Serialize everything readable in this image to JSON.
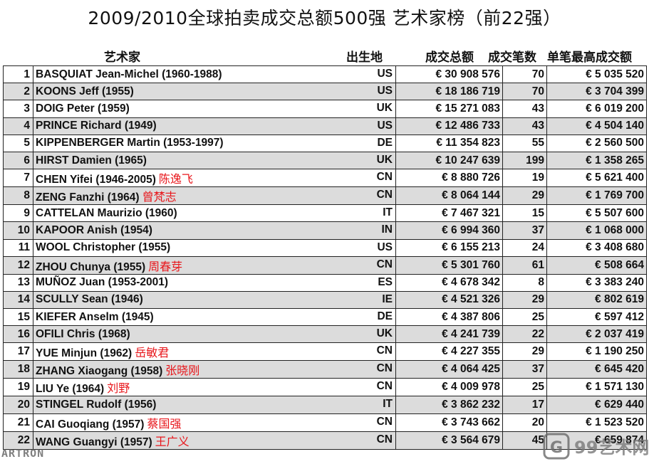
{
  "title": "2009/2010全球拍卖成交总额500强  艺术家榜（前22强）",
  "headers": {
    "artist": "艺术家",
    "birthplace": "出生地",
    "total": "成交总额",
    "count": "成交笔数",
    "max": "单笔最高成交额"
  },
  "rows": [
    {
      "rank": "1",
      "name": "BASQUIAT Jean-Michel (1960-1988)",
      "cn": "",
      "country": "US",
      "total": "€ 30 908 576",
      "count": "70",
      "max": "€ 5 035 520"
    },
    {
      "rank": "2",
      "name": "KOONS Jeff (1955)",
      "cn": "",
      "country": "US",
      "total": "€ 18 186 719",
      "count": "70",
      "max": "€ 3 704 399"
    },
    {
      "rank": "3",
      "name": "DOIG Peter (1959)",
      "cn": "",
      "country": "UK",
      "total": "€ 15 271 083",
      "count": "43",
      "max": "€ 6 019 200"
    },
    {
      "rank": "4",
      "name": "PRINCE Richard (1949)",
      "cn": "",
      "country": "US",
      "total": "€ 12 486 733",
      "count": "43",
      "max": "€ 4 504 140"
    },
    {
      "rank": "5",
      "name": "KIPPENBERGER Martin (1953-1997)",
      "cn": "",
      "country": "DE",
      "total": "€ 11 354 823",
      "count": "55",
      "max": "€ 2 560 500"
    },
    {
      "rank": "6",
      "name": "HIRST Damien (1965)",
      "cn": "",
      "country": "UK",
      "total": "€ 10 247 639",
      "count": "199",
      "max": "€ 1 358 265"
    },
    {
      "rank": "7",
      "name": "CHEN Yifei (1946-2005)",
      "cn": "陈逸飞",
      "country": "CN",
      "total": "€ 8 880 726",
      "count": "19",
      "max": "€ 5 621 400"
    },
    {
      "rank": "8",
      "name": "ZENG Fanzhi (1964)",
      "cn": "曾梵志",
      "country": "CN",
      "total": "€ 8 064 144",
      "count": "29",
      "max": "€ 1 769 700"
    },
    {
      "rank": "9",
      "name": "CATTELAN Maurizio (1960)",
      "cn": "",
      "country": "IT",
      "total": "€ 7 467 321",
      "count": "15",
      "max": "€ 5 507 600"
    },
    {
      "rank": "10",
      "name": "KAPOOR Anish (1954)",
      "cn": "",
      "country": "IN",
      "total": "€ 6 994 360",
      "count": "37",
      "max": "€ 1 068 000"
    },
    {
      "rank": "11",
      "name": "WOOL Christopher (1955)",
      "cn": "",
      "country": "US",
      "total": "€ 6 155 213",
      "count": "24",
      "max": "€ 3 408 680"
    },
    {
      "rank": "12",
      "name": "ZHOU Chunya (1955)",
      "cn": "周春芽",
      "country": "CN",
      "total": "€ 5 301 760",
      "count": "61",
      "max": "€ 508 664"
    },
    {
      "rank": "13",
      "name": "MUÑOZ Juan (1953-2001)",
      "cn": "",
      "country": "ES",
      "total": "€ 4 678 342",
      "count": "8",
      "max": "€ 3 383 240"
    },
    {
      "rank": "14",
      "name": "SCULLY Sean (1946)",
      "cn": "",
      "country": "IE",
      "total": "€ 4 521 326",
      "count": "29",
      "max": "€ 802 619"
    },
    {
      "rank": "15",
      "name": "KIEFER Anselm (1945)",
      "cn": "",
      "country": "DE",
      "total": "€ 4 387 806",
      "count": "25",
      "max": "€ 597 412"
    },
    {
      "rank": "16",
      "name": "OFILI Chris (1968)",
      "cn": "",
      "country": "UK",
      "total": "€ 4 241 739",
      "count": "22",
      "max": "€ 2 037 419"
    },
    {
      "rank": "17",
      "name": "YUE Minjun (1962)",
      "cn": "岳敏君",
      "country": "CN",
      "total": "€ 4 227 355",
      "count": "29",
      "max": "€ 1 190 250"
    },
    {
      "rank": "18",
      "name": "ZHANG Xiaogang (1958)",
      "cn": "张晓刚",
      "country": "CN",
      "total": "€ 4 064 425",
      "count": "37",
      "max": "€ 645 420"
    },
    {
      "rank": "19",
      "name": "LIU Ye (1964)",
      "cn": "刘野",
      "country": "CN",
      "total": "€ 4 009 978",
      "count": "25",
      "max": "€ 1 571 130"
    },
    {
      "rank": "20",
      "name": "STINGEL Rudolf (1956)",
      "cn": "",
      "country": "IT",
      "total": "€ 3 862 232",
      "count": "17",
      "max": "€ 629 440"
    },
    {
      "rank": "21",
      "name": "CAI Guoqiang (1957)",
      "cn": "蔡国强",
      "country": "CN",
      "total": "€ 3 743 662",
      "count": "20",
      "max": "€ 1 523 520"
    },
    {
      "rank": "22",
      "name": "WANG Guangyi (1957)",
      "cn": "王广义",
      "country": "CN",
      "total": "€ 3 564 679",
      "count": "45",
      "max": "€ 659 874"
    }
  ],
  "watermark_left": "ARTRON",
  "watermark_right": "99艺术网",
  "colors": {
    "highlight": "#e8161b",
    "row_alt": "#dcdcdc"
  }
}
